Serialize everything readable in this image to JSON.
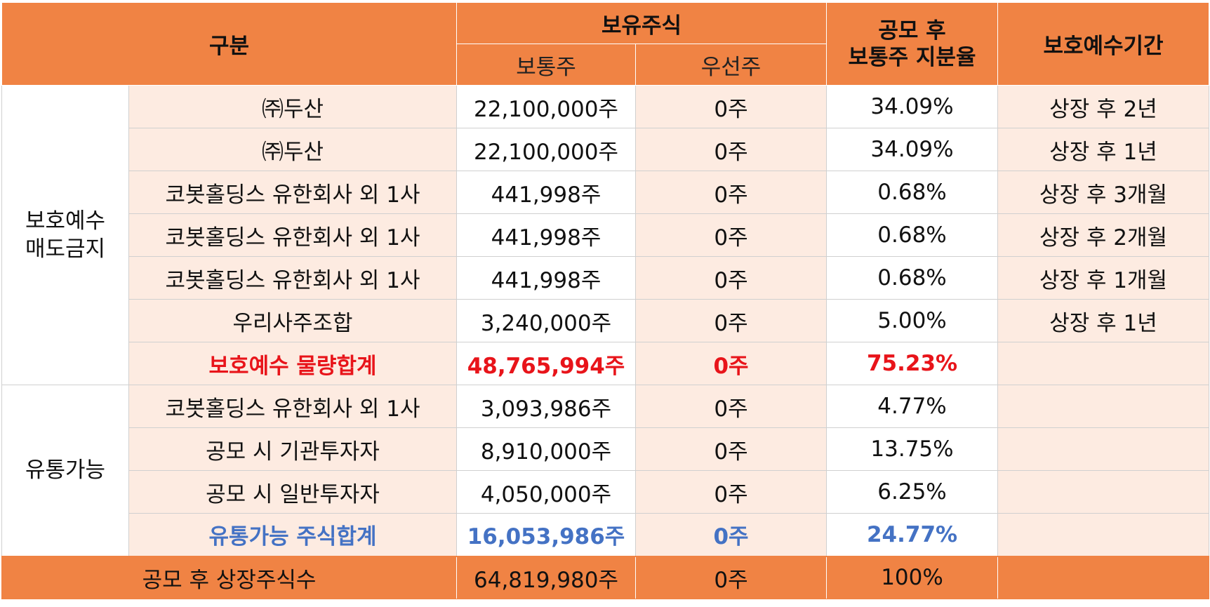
{
  "header": {
    "category": "구분",
    "holdings": "보유주식",
    "common": "보통주",
    "preferred": "우선주",
    "ratio": [
      "공모 후",
      "보통주 지분율"
    ],
    "lockup_period": "보호예수기간"
  },
  "groups": {
    "locked": [
      "보호예수",
      "매도금지"
    ],
    "tradable": "유통가능"
  },
  "rows": [
    {
      "name": "㈜두산",
      "common": "22,100,000주",
      "preferred": "0주",
      "ratio": "34.09%",
      "period": "상장 후 2년"
    },
    {
      "name": "㈜두산",
      "common": "22,100,000주",
      "preferred": "0주",
      "ratio": "34.09%",
      "period": "상장 후 1년"
    },
    {
      "name": "코봇홀딩스 유한회사 외 1사",
      "common": "441,998주",
      "preferred": "0주",
      "ratio": "0.68%",
      "period": "상장 후 3개월"
    },
    {
      "name": "코봇홀딩스 유한회사 외 1사",
      "common": "441,998주",
      "preferred": "0주",
      "ratio": "0.68%",
      "period": "상장 후 2개월"
    },
    {
      "name": "코봇홀딩스 유한회사 외 1사",
      "common": "441,998주",
      "preferred": "0주",
      "ratio": "0.68%",
      "period": "상장 후 1개월"
    },
    {
      "name": "우리사주조합",
      "common": "3,240,000주",
      "preferred": "0주",
      "ratio": "5.00%",
      "period": "상장 후 1년"
    },
    {
      "name": "보호예수 물량합계",
      "common": "48,765,994주",
      "preferred": "0주",
      "ratio": "75.23%",
      "period": ""
    },
    {
      "name": "코봇홀딩스 유한회사 외 1사",
      "common": "3,093,986주",
      "preferred": "0주",
      "ratio": "4.77%",
      "period": ""
    },
    {
      "name": "공모 시 기관투자자",
      "common": "8,910,000주",
      "preferred": "0주",
      "ratio": "13.75%",
      "period": ""
    },
    {
      "name": "공모 시 일반투자자",
      "common": "4,050,000주",
      "preferred": "0주",
      "ratio": "6.25%",
      "period": ""
    },
    {
      "name": "유통가능 주식합계",
      "common": "16,053,986주",
      "preferred": "0주",
      "ratio": "24.77%",
      "period": ""
    }
  ],
  "footer": {
    "name": "공모 후 상장주식수",
    "common": "64,819,980주",
    "preferred": "0주",
    "ratio": "100%",
    "period": ""
  },
  "colors": {
    "header": "#f08344",
    "row_fill": "#fdebe1",
    "locked_total": "#e8141a",
    "tradable_total": "#4472c4"
  }
}
